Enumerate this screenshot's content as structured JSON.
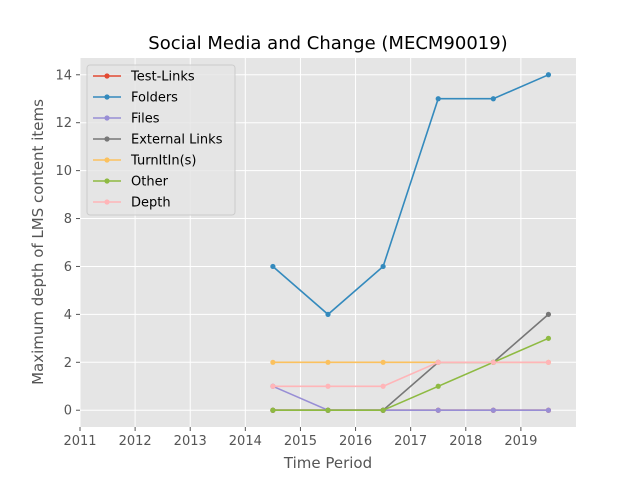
{
  "chart_data": {
    "type": "line",
    "title": "Social Media and Change (MECM90019)",
    "xlabel": "Time Period",
    "ylabel": "Maximum depth of LMS content items",
    "xlim": [
      2011,
      2020
    ],
    "ylim": [
      -0.7,
      14.7
    ],
    "xticks": [
      2011,
      2012,
      2013,
      2014,
      2015,
      2016,
      2017,
      2018,
      2019
    ],
    "yticks": [
      0,
      2,
      4,
      6,
      8,
      10,
      12,
      14
    ],
    "grid": true,
    "legend_position": "top-left",
    "x": [
      2014.5,
      2015.5,
      2016.5,
      2017.5,
      2018.5,
      2019.5
    ],
    "series": [
      {
        "name": "Test-Links",
        "color": "#E24A33",
        "values": [
          0,
          0,
          0,
          0,
          0,
          0
        ]
      },
      {
        "name": "Folders",
        "color": "#348ABD",
        "values": [
          6,
          4,
          6,
          13,
          13,
          14
        ]
      },
      {
        "name": "Files",
        "color": "#988ED5",
        "values": [
          1,
          0,
          0,
          0,
          0,
          0
        ]
      },
      {
        "name": "External Links",
        "color": "#777777",
        "values": [
          0,
          0,
          0,
          2,
          2,
          4
        ]
      },
      {
        "name": "TurnItIn(s)",
        "color": "#FBC15E",
        "values": [
          2,
          2,
          2,
          2,
          2,
          2
        ]
      },
      {
        "name": "Other",
        "color": "#8EBA42",
        "values": [
          0,
          0,
          0,
          1,
          2,
          3
        ]
      },
      {
        "name": "Depth",
        "color": "#FFB5B8",
        "values": [
          1,
          1,
          1,
          2,
          2,
          2
        ]
      }
    ]
  }
}
